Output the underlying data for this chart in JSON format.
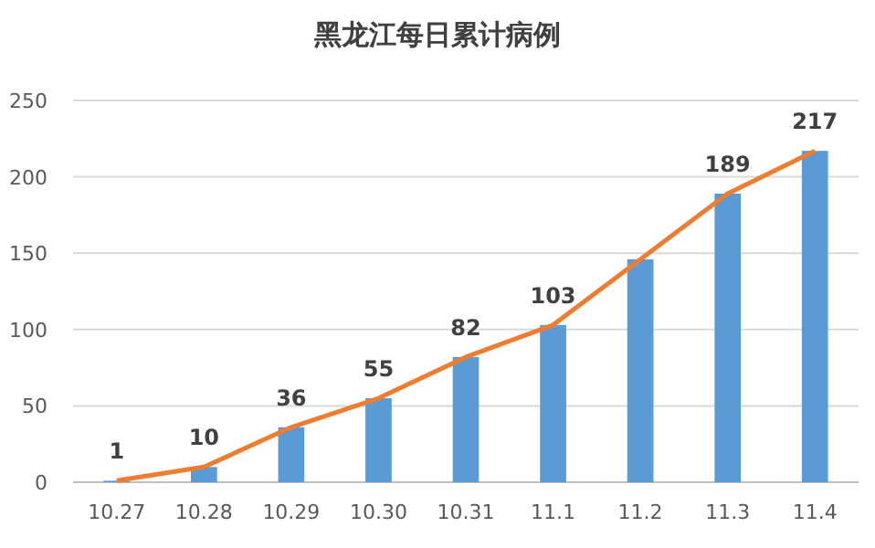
{
  "chart_data": {
    "type": "bar",
    "title": "黑龙江每日累计病例",
    "categories": [
      "10.27",
      "10.28",
      "10.29",
      "10.30",
      "10.31",
      "11.1",
      "11.2",
      "11.3",
      "11.4"
    ],
    "series": [
      {
        "color": "#5b9bd5",
        "values": [
          1,
          10,
          36,
          55,
          82,
          103,
          146,
          189,
          217
        ],
        "value_labels": [
          "1",
          "10",
          "36",
          "55",
          "82",
          "103",
          null,
          "189",
          "217"
        ]
      },
      {
        "type": "line",
        "color": "#ed7d31",
        "values": [
          1,
          10,
          36,
          55,
          82,
          103,
          146,
          189,
          217
        ]
      }
    ],
    "ylim": [
      0,
      250
    ],
    "yticks": [
      0,
      50,
      100,
      150,
      200,
      250
    ],
    "grid": "y",
    "marker": "none",
    "line_style": "solid"
  }
}
